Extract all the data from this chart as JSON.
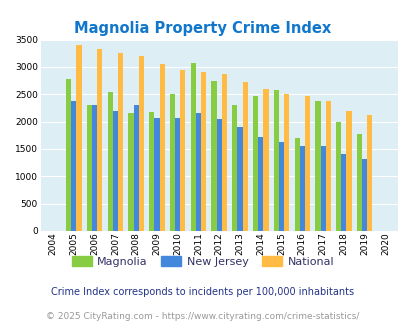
{
  "title": "Magnolia Property Crime Index",
  "years": [
    2004,
    2005,
    2006,
    2007,
    2008,
    2009,
    2010,
    2011,
    2012,
    2013,
    2014,
    2015,
    2016,
    2017,
    2018,
    2019,
    2020
  ],
  "magnolia": [
    0,
    2775,
    2300,
    2550,
    2150,
    2175,
    2500,
    3075,
    2750,
    2300,
    2475,
    2575,
    1700,
    2375,
    2000,
    1775,
    0
  ],
  "new_jersey": [
    0,
    2375,
    2300,
    2200,
    2300,
    2075,
    2075,
    2150,
    2050,
    1900,
    1725,
    1625,
    1550,
    1550,
    1400,
    1325,
    0
  ],
  "national": [
    0,
    3400,
    3325,
    3250,
    3200,
    3050,
    2950,
    2900,
    2875,
    2725,
    2600,
    2500,
    2475,
    2375,
    2200,
    2125,
    0
  ],
  "magnolia_color": "#88cc44",
  "new_jersey_color": "#4488dd",
  "national_color": "#ffbb44",
  "plot_bg": "#ddeef5",
  "ylim": [
    0,
    3500
  ],
  "yticks": [
    0,
    500,
    1000,
    1500,
    2000,
    2500,
    3000,
    3500
  ],
  "footnote1": "Crime Index corresponds to incidents per 100,000 inhabitants",
  "footnote2": "© 2025 CityRating.com - https://www.cityrating.com/crime-statistics/",
  "title_color": "#1177cc",
  "footnote1_color": "#223388",
  "footnote2_color": "#999999",
  "bar_width": 0.25
}
